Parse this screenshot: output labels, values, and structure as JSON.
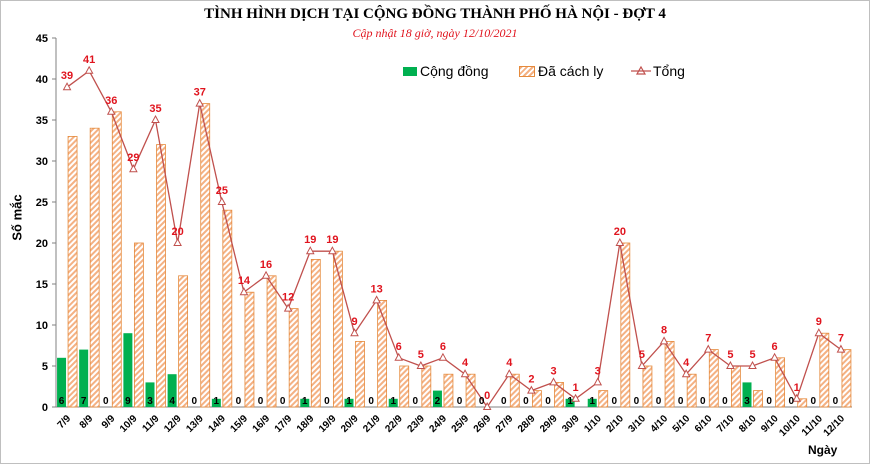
{
  "chart_data": {
    "type": "bar",
    "title": "TÌNH HÌNH DỊCH TẠI CỘNG ĐỒNG THÀNH PHỐ HÀ NỘI - ĐỢT 4",
    "subtitle": "Cập nhật 18 giờ, ngày 12/10/2021",
    "ylabel": "Số mắc",
    "xlabel": "Ngày",
    "ylim": [
      0,
      45
    ],
    "yticks": [
      0,
      5,
      10,
      15,
      20,
      25,
      30,
      35,
      40,
      45
    ],
    "categories": [
      "7/9",
      "8/9",
      "9/9",
      "10/9",
      "11/9",
      "12/9",
      "13/9",
      "14/9",
      "15/9",
      "16/9",
      "17/9",
      "18/9",
      "19/9",
      "20/9",
      "21/9",
      "22/9",
      "23/9",
      "24/9",
      "25/9",
      "26/9",
      "27/9",
      "28/9",
      "29/9",
      "30/9",
      "1/10",
      "2/10",
      "3/10",
      "4/10",
      "5/10",
      "6/10",
      "7/10",
      "8/10",
      "9/10",
      "10/10",
      "11/10",
      "12/10"
    ],
    "series": [
      {
        "name": "Cộng đồng",
        "kind": "bar",
        "color": "#00b050",
        "values": [
          6,
          7,
          0,
          9,
          3,
          4,
          0,
          1,
          0,
          0,
          0,
          1,
          0,
          1,
          0,
          1,
          0,
          2,
          0,
          0,
          0,
          0,
          0,
          1,
          1,
          0,
          0,
          0,
          0,
          0,
          0,
          3,
          0,
          0,
          0,
          0
        ]
      },
      {
        "name": "Đã cách ly",
        "kind": "bar",
        "color": "#f4b183",
        "stroke": "#e58a3c",
        "values": [
          33,
          34,
          36,
          20,
          32,
          16,
          37,
          24,
          14,
          16,
          12,
          18,
          19,
          8,
          13,
          5,
          5,
          4,
          4,
          0,
          4,
          2,
          3,
          0,
          2,
          20,
          5,
          8,
          4,
          7,
          5,
          2,
          6,
          1,
          9,
          7
        ]
      },
      {
        "name": "Tổng",
        "kind": "line",
        "color": "#c0504d",
        "values": [
          39,
          41,
          36,
          29,
          35,
          20,
          37,
          25,
          14,
          16,
          12,
          19,
          19,
          9,
          13,
          6,
          5,
          6,
          4,
          0,
          4,
          2,
          3,
          1,
          3,
          20,
          5,
          8,
          4,
          7,
          5,
          5,
          6,
          1,
          9,
          7
        ]
      }
    ],
    "legend_position": "top-center",
    "grid": false
  }
}
